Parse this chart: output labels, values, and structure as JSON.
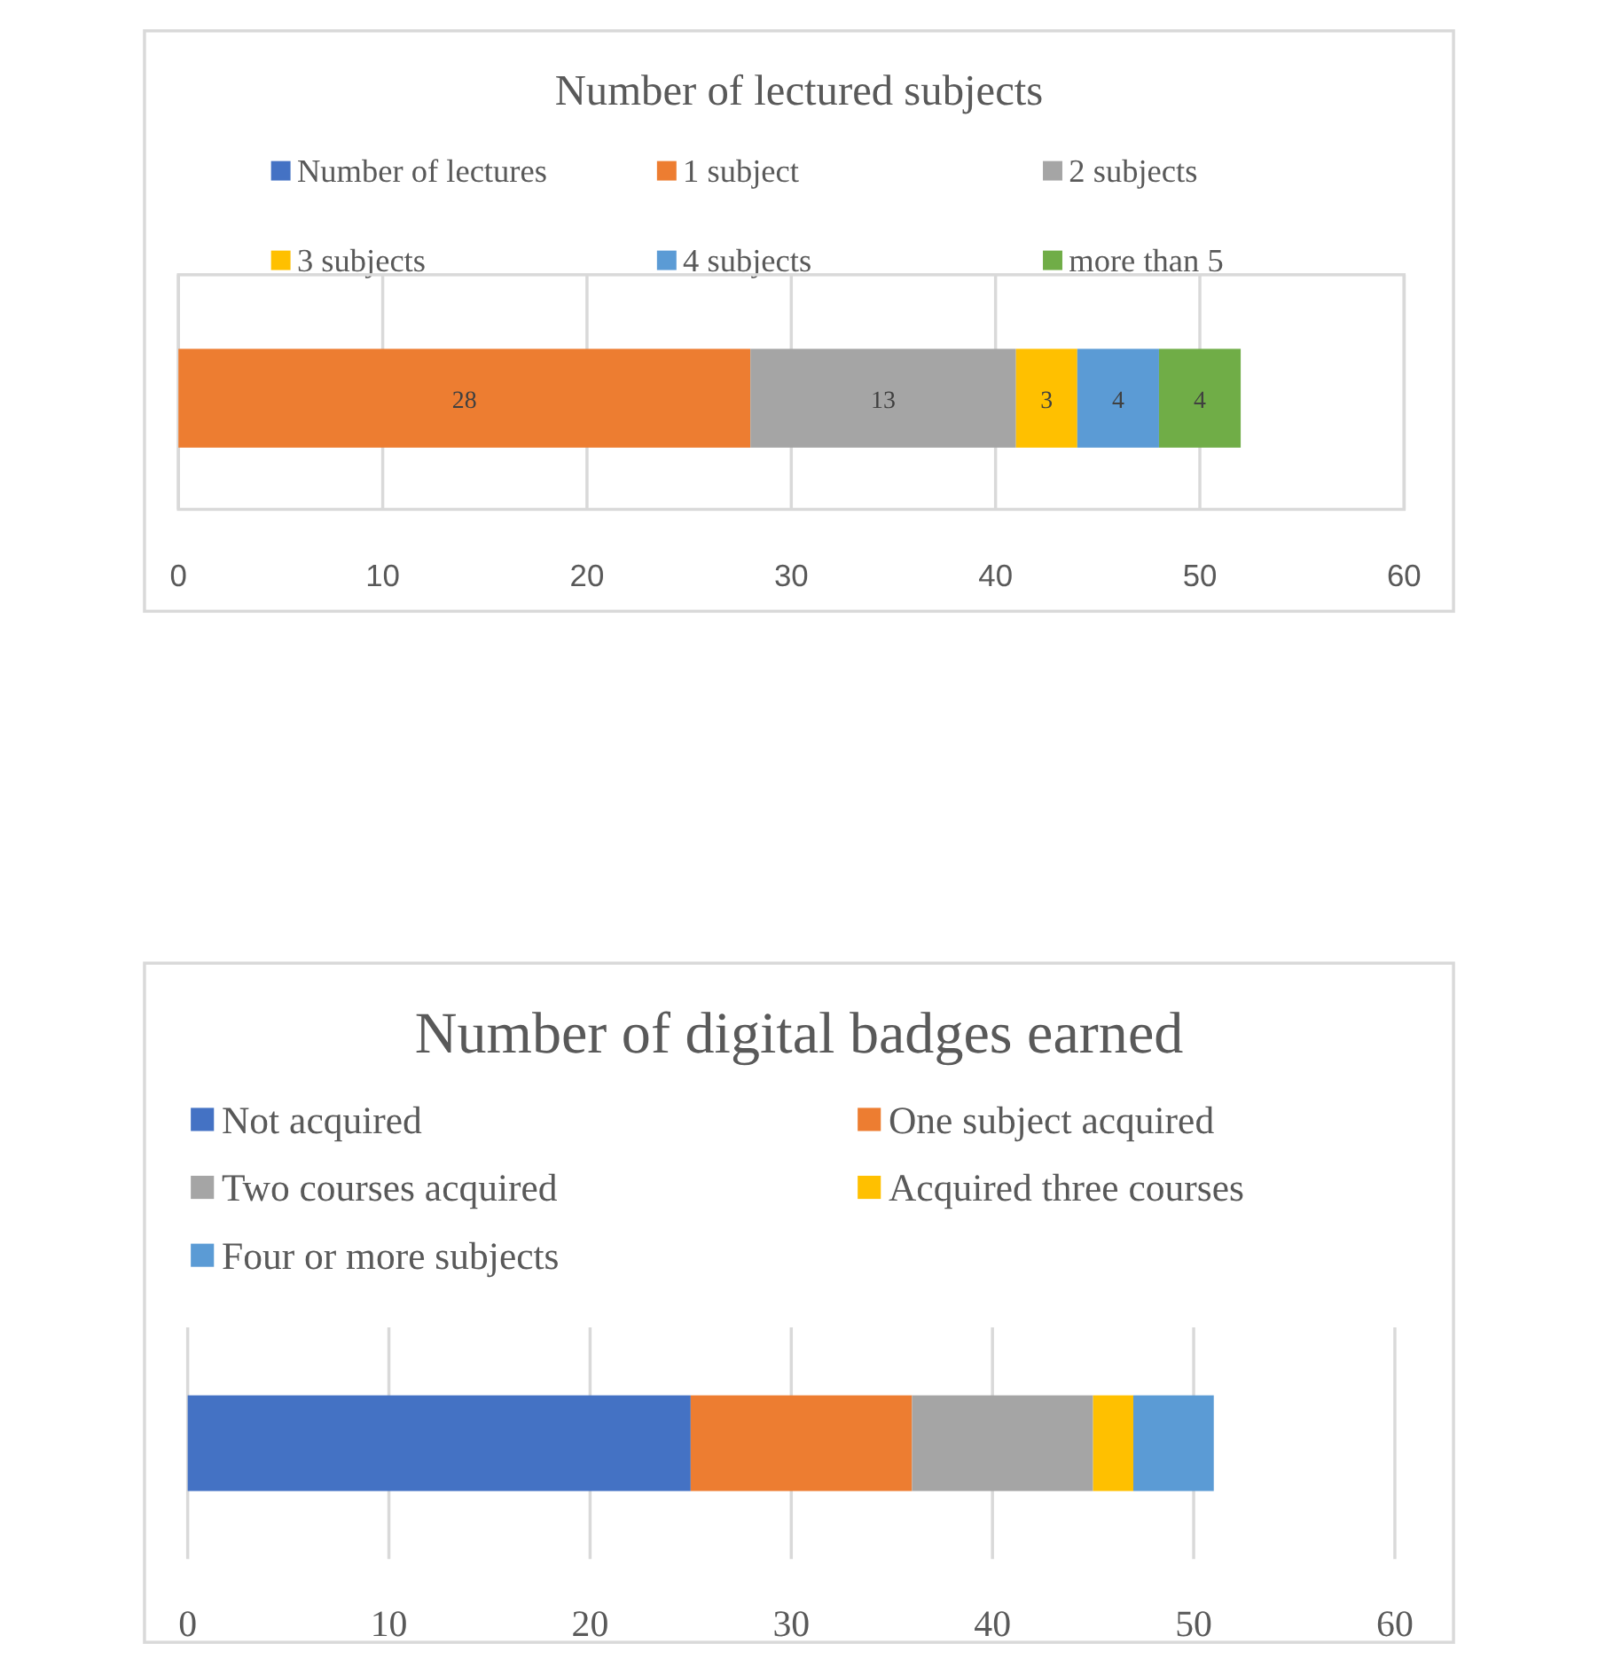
{
  "chart_data": [
    {
      "type": "bar",
      "orientation": "horizontal",
      "stacked": true,
      "title": "Number of lectured subjects",
      "categories": [
        null
      ],
      "series": [
        {
          "name": "Number of lectures",
          "color": "#4472c4",
          "values": [
            null
          ]
        },
        {
          "name": "1 subject",
          "color": "#ed7d31",
          "values": [
            28
          ]
        },
        {
          "name": "2 subjects",
          "color": "#a5a5a5",
          "values": [
            13
          ]
        },
        {
          "name": "3 subjects",
          "color": "#ffc000",
          "values": [
            3
          ]
        },
        {
          "name": "4 subjects",
          "color": "#5b9bd5",
          "values": [
            4
          ]
        },
        {
          "name": "more than 5",
          "color": "#70ad47",
          "values": [
            4
          ]
        }
      ],
      "xlim": [
        0,
        60
      ],
      "xticks": [
        0,
        10,
        20,
        30,
        40,
        50,
        60
      ],
      "grid": "x",
      "legend": "top",
      "data_labels": true
    },
    {
      "type": "bar",
      "orientation": "horizontal",
      "stacked": true,
      "title": "Number of digital badges earned",
      "categories": [
        null
      ],
      "series": [
        {
          "name": "Not acquired",
          "color": "#4472c4",
          "values": [
            25
          ]
        },
        {
          "name": "One subject acquired",
          "color": "#ed7d31",
          "values": [
            11
          ]
        },
        {
          "name": "Two courses acquired",
          "color": "#a5a5a5",
          "values": [
            9
          ]
        },
        {
          "name": "Acquired three courses",
          "color": "#ffc000",
          "values": [
            2
          ]
        },
        {
          "name": "Four or more subjects",
          "color": "#5b9bd5",
          "values": [
            4
          ]
        }
      ],
      "xlim": [
        0,
        60
      ],
      "xticks": [
        0,
        10,
        20,
        30,
        40,
        50,
        60
      ],
      "grid": "x",
      "legend": "top"
    }
  ]
}
